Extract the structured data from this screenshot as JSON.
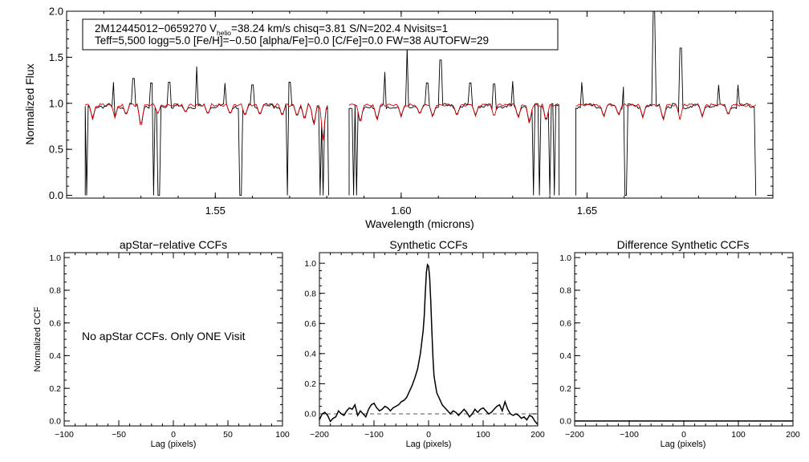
{
  "colors": {
    "observed": "#000000",
    "model": "#d40000",
    "axis": "#000000",
    "zero_line": "#555555"
  },
  "chart_data": [
    {
      "id": "spectrum",
      "type": "line",
      "title": "",
      "xlabel": "Wavelength (microns)",
      "ylabel": "Normalized Flux",
      "xlim": [
        1.51,
        1.7
      ],
      "ylim": [
        -0.03,
        2.0
      ],
      "xticks": [
        1.55,
        1.6,
        1.65
      ],
      "xtick_labels": [
        "1.55",
        "1.60",
        "1.65"
      ],
      "yticks": [
        0.0,
        0.5,
        1.0,
        1.5,
        2.0
      ],
      "ytick_labels": [
        "0.0",
        "0.5",
        "1.0",
        "1.5",
        "2.0"
      ],
      "info_line1_parts": [
        "2M12445012−0659270  V",
        "helio",
        "=38.24 km/s  chisq=3.81  S/N=202.4  Nvisits=1"
      ],
      "info_line2": "Teff=5,500 logg=5.0 [Fe/H]=−0.50 [alpha/Fe]=0.0 [C/Fe]=0.0 FW=38 AUTOFW=29",
      "chips": [
        [
          1.515,
          1.5805
        ],
        [
          1.586,
          1.6425
        ],
        [
          1.647,
          1.6955
        ]
      ],
      "series": [
        {
          "name": "",
          "role": "observed",
          "continuum": 0.97
        },
        {
          "name": "",
          "role": "model",
          "continuum": 0.98
        }
      ],
      "emission_spikes": [
        [
          1.5225,
          1.23
        ],
        [
          1.528,
          1.27
        ],
        [
          1.5328,
          1.22
        ],
        [
          1.5375,
          1.23
        ],
        [
          1.545,
          1.4
        ],
        [
          1.5525,
          1.22
        ],
        [
          1.56,
          1.2
        ],
        [
          1.57,
          1.23
        ],
        [
          1.5955,
          1.34
        ],
        [
          1.6015,
          1.6
        ],
        [
          1.607,
          1.22
        ],
        [
          1.6105,
          1.47
        ],
        [
          1.6185,
          1.22
        ],
        [
          1.625,
          1.21
        ],
        [
          1.63,
          1.24
        ],
        [
          1.6485,
          1.23
        ],
        [
          1.6598,
          1.18
        ],
        [
          1.668,
          2.0
        ],
        [
          1.6752,
          1.6
        ],
        [
          1.6853,
          1.2
        ],
        [
          1.6905,
          1.2
        ],
        [
          1.696,
          1.8
        ]
      ],
      "bad_pixel_drops": [
        1.5155,
        1.5335,
        1.5345,
        1.535,
        1.5565,
        1.557,
        1.5695,
        1.578,
        1.579,
        1.5872,
        1.588,
        1.6355,
        1.637,
        1.64,
        1.641,
        1.66,
        1.6605,
        1.6955
      ],
      "model_absorption": [
        [
          1.517,
          0.82
        ],
        [
          1.523,
          0.84
        ],
        [
          1.526,
          0.86
        ],
        [
          1.53,
          0.71
        ],
        [
          1.5345,
          0.88
        ],
        [
          1.542,
          0.89
        ],
        [
          1.548,
          0.87
        ],
        [
          1.554,
          0.87
        ],
        [
          1.558,
          0.85
        ],
        [
          1.562,
          0.86
        ],
        [
          1.568,
          0.85
        ],
        [
          1.572,
          0.84
        ],
        [
          1.574,
          0.8
        ],
        [
          1.5765,
          0.74
        ],
        [
          1.579,
          0.6
        ],
        [
          1.589,
          0.76
        ],
        [
          1.5935,
          0.8
        ],
        [
          1.6,
          0.85
        ],
        [
          1.605,
          0.87
        ],
        [
          1.6085,
          0.84
        ],
        [
          1.615,
          0.85
        ],
        [
          1.62,
          0.86
        ],
        [
          1.625,
          0.84
        ],
        [
          1.6315,
          0.83
        ],
        [
          1.6345,
          0.76
        ],
        [
          1.639,
          0.78
        ],
        [
          1.6545,
          0.84
        ],
        [
          1.6585,
          0.86
        ],
        [
          1.665,
          0.84
        ],
        [
          1.6705,
          0.8
        ],
        [
          1.675,
          0.82
        ],
        [
          1.681,
          0.85
        ],
        [
          1.688,
          0.86
        ]
      ]
    },
    {
      "id": "apstar",
      "type": "line",
      "title": "apStar−relative CCFs",
      "xlabel": "Lag (pixels)",
      "ylabel": "Normalized CCF",
      "xlim": [
        -100,
        100
      ],
      "ylim": [
        -0.03,
        1.03
      ],
      "xticks": [
        -100,
        -50,
        0,
        50,
        100
      ],
      "xtick_labels": [
        "−100",
        "−50",
        "0",
        "50",
        "100"
      ],
      "yticks": [
        0.0,
        0.2,
        0.4,
        0.6,
        0.8,
        1.0
      ],
      "ytick_labels": [
        "0.0",
        "0.2",
        "0.4",
        "0.6",
        "0.8",
        "1.0"
      ],
      "annotation": "No apStar CCFs.  Only ONE Visit",
      "series": []
    },
    {
      "id": "synthetic",
      "type": "line",
      "title": "Synthetic CCFs",
      "xlabel": "Lag (pixels)",
      "ylabel": "",
      "xlim": [
        -200,
        200
      ],
      "ylim": [
        -0.08,
        1.07
      ],
      "xticks": [
        -200,
        -100,
        0,
        100,
        200
      ],
      "xtick_labels": [
        "−200",
        "−100",
        "0",
        "100",
        "200"
      ],
      "yticks": [
        0.0,
        0.2,
        0.4,
        0.6,
        0.8,
        1.0
      ],
      "ytick_labels": [
        "0.0",
        "0.2",
        "0.4",
        "0.6",
        "0.8",
        "1.0"
      ],
      "zero_line": 0.0,
      "series": [
        {
          "name": "",
          "x": [
            -200,
            -195,
            -190,
            -185,
            -180,
            -175,
            -170,
            -165,
            -160,
            -155,
            -150,
            -145,
            -140,
            -135,
            -130,
            -125,
            -120,
            -115,
            -110,
            -105,
            -100,
            -95,
            -90,
            -85,
            -80,
            -75,
            -70,
            -65,
            -60,
            -55,
            -50,
            -45,
            -40,
            -35,
            -30,
            -25,
            -20,
            -15,
            -10,
            -8,
            -6,
            -4,
            -2,
            0,
            2,
            4,
            6,
            8,
            10,
            15,
            20,
            25,
            30,
            35,
            40,
            45,
            50,
            55,
            60,
            65,
            70,
            75,
            80,
            85,
            90,
            95,
            100,
            105,
            110,
            115,
            120,
            125,
            130,
            135,
            140,
            145,
            150,
            155,
            160,
            165,
            170,
            175,
            180,
            185,
            190,
            195,
            200
          ],
          "y": [
            -0.04,
            0.0,
            0.01,
            -0.01,
            -0.05,
            -0.03,
            -0.02,
            0.02,
            0.0,
            -0.01,
            0.02,
            0.04,
            0.03,
            0.06,
            -0.01,
            0.02,
            0.0,
            -0.02,
            0.03,
            0.06,
            0.07,
            0.04,
            0.02,
            0.03,
            0.05,
            0.04,
            0.02,
            0.04,
            0.05,
            0.06,
            0.08,
            0.09,
            0.11,
            0.15,
            0.19,
            0.24,
            0.3,
            0.4,
            0.55,
            0.65,
            0.8,
            0.94,
            0.99,
            0.98,
            0.9,
            0.75,
            0.55,
            0.38,
            0.25,
            0.14,
            0.1,
            0.06,
            0.04,
            0.02,
            0.0,
            0.02,
            0.01,
            -0.01,
            0.01,
            0.03,
            0.01,
            -0.02,
            0.0,
            0.03,
            0.01,
            0.03,
            0.04,
            0.02,
            0.0,
            0.01,
            0.03,
            0.05,
            0.06,
            0.02,
            0.08,
            0.03,
            0.0,
            -0.01,
            0.0,
            -0.01,
            -0.03,
            -0.02,
            -0.04,
            -0.01,
            -0.02,
            -0.05,
            -0.07
          ]
        }
      ]
    },
    {
      "id": "difference",
      "type": "line",
      "title": "Difference Synthetic CCFs",
      "xlabel": "Lag (pixels)",
      "ylabel": "",
      "xlim": [
        -200,
        200
      ],
      "ylim": [
        -0.03,
        1.03
      ],
      "xticks": [
        -200,
        -100,
        0,
        100,
        200
      ],
      "xtick_labels": [
        "−200",
        "−100",
        "0",
        "100",
        "200"
      ],
      "yticks": [
        0.0,
        0.2,
        0.4,
        0.6,
        0.8,
        1.0
      ],
      "ytick_labels": [
        "0.0",
        "0.2",
        "0.4",
        "0.6",
        "0.8",
        "1.0"
      ],
      "series": [
        {
          "name": "",
          "x": [
            -200,
            200
          ],
          "y": [
            0.0,
            0.0
          ]
        }
      ]
    }
  ]
}
